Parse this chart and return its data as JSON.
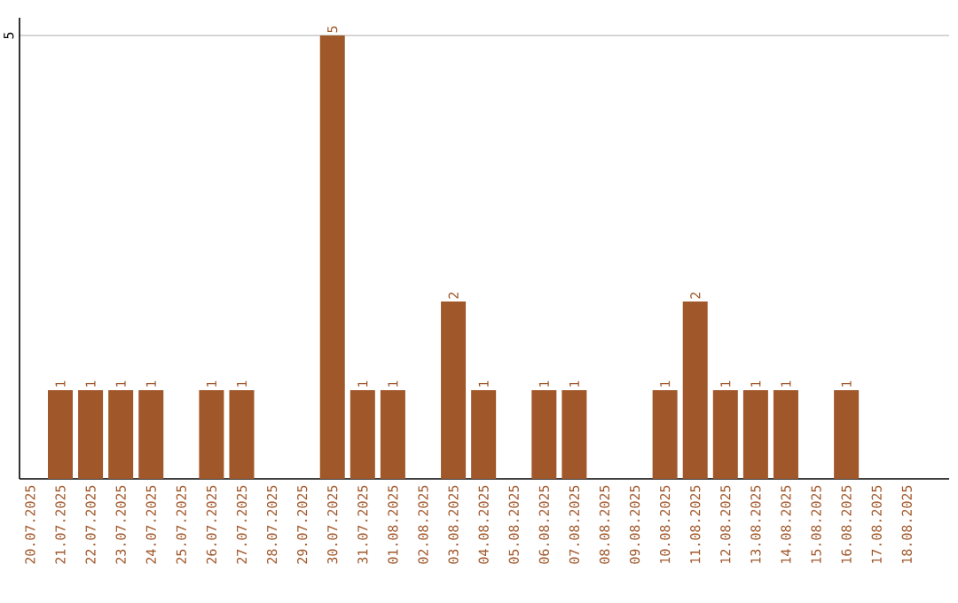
{
  "chart_data": {
    "type": "bar",
    "categories": [
      "20.07.2025",
      "21.07.2025",
      "22.07.2025",
      "23.07.2025",
      "24.07.2025",
      "25.07.2025",
      "26.07.2025",
      "27.07.2025",
      "28.07.2025",
      "29.07.2025",
      "30.07.2025",
      "31.07.2025",
      "01.08.2025",
      "02.08.2025",
      "03.08.2025",
      "04.08.2025",
      "05.08.2025",
      "06.08.2025",
      "07.08.2025",
      "08.08.2025",
      "09.08.2025",
      "10.08.2025",
      "11.08.2025",
      "12.08.2025",
      "13.08.2025",
      "14.08.2025",
      "15.08.2025",
      "16.08.2025",
      "17.08.2025",
      "18.08.2025"
    ],
    "values": [
      0,
      1,
      1,
      1,
      1,
      0,
      1,
      1,
      0,
      0,
      5,
      1,
      1,
      0,
      2,
      1,
      0,
      1,
      1,
      0,
      0,
      1,
      2,
      1,
      1,
      1,
      0,
      1,
      0,
      0
    ],
    "value_labels": [
      null,
      "1",
      "1",
      "1",
      "1",
      null,
      "1",
      "1",
      null,
      null,
      "5",
      "1",
      "1",
      null,
      "2",
      "1",
      null,
      "1",
      "1",
      null,
      null,
      "1",
      "2",
      "1",
      "1",
      "1",
      null,
      "1",
      null,
      null
    ],
    "color": "#a0572a",
    "ylim": [
      0,
      5.2
    ],
    "yticks": [
      5
    ],
    "grid": "y"
  }
}
